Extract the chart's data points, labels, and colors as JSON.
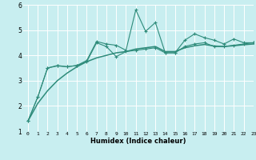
{
  "x": [
    0,
    1,
    2,
    3,
    4,
    5,
    6,
    7,
    8,
    9,
    10,
    11,
    12,
    13,
    14,
    15,
    16,
    17,
    18,
    19,
    20,
    21,
    22,
    23
  ],
  "line1_y": [
    1.4,
    2.35,
    3.5,
    3.6,
    3.55,
    3.6,
    3.8,
    4.55,
    4.45,
    4.4,
    4.2,
    5.8,
    4.95,
    5.3,
    4.1,
    4.1,
    4.6,
    4.85,
    4.7,
    4.6,
    4.45,
    4.65,
    4.5,
    4.5
  ],
  "line2_y": [
    1.4,
    2.35,
    3.5,
    3.58,
    3.55,
    3.6,
    3.75,
    4.5,
    4.35,
    3.95,
    4.15,
    4.2,
    4.25,
    4.3,
    4.1,
    4.1,
    4.35,
    4.45,
    4.5,
    4.35,
    4.35,
    4.4,
    4.45,
    4.5
  ],
  "line3_y": [
    1.4,
    2.1,
    2.6,
    3.0,
    3.3,
    3.55,
    3.75,
    3.9,
    4.0,
    4.1,
    4.15,
    4.25,
    4.3,
    4.35,
    4.15,
    4.15,
    4.3,
    4.38,
    4.43,
    4.37,
    4.35,
    4.38,
    4.42,
    4.45
  ],
  "color": "#2e8b7a",
  "bg_color": "#c8eef0",
  "grid_color": "#ffffff",
  "xlabel": "Humidex (Indice chaleur)",
  "ylim": [
    1,
    6
  ],
  "xlim": [
    -0.5,
    23
  ],
  "yticks": [
    1,
    2,
    3,
    4,
    5,
    6
  ],
  "xticks": [
    0,
    1,
    2,
    3,
    4,
    5,
    6,
    7,
    8,
    9,
    10,
    11,
    12,
    13,
    14,
    15,
    16,
    17,
    18,
    19,
    20,
    21,
    22,
    23
  ],
  "tick_fontsize": 4.5,
  "xlabel_fontsize": 6.0,
  "ytick_fontsize": 5.5,
  "linewidth": 0.8,
  "marker_size": 3.0
}
